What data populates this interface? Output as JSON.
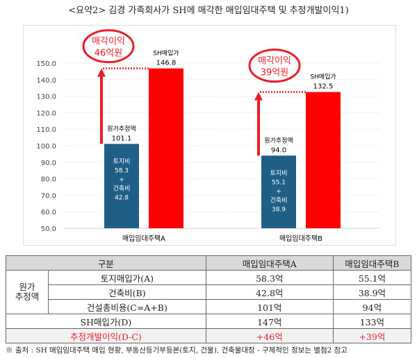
{
  "title": "<요약2> 김경 가족회사가 SH에 매각한 매입임대주택 및 추정개발이익1)",
  "chart_data": {
    "type": "bar",
    "categories": [
      "매입임대주택A",
      "매입임대주택B"
    ],
    "ylim": [
      50,
      150
    ],
    "yticks": [
      "50.0",
      "60.0",
      "70.0",
      "80.0",
      "90.0",
      "100.0",
      "110.0",
      "120.0",
      "130.0",
      "140.0",
      "150.0"
    ],
    "grid": true,
    "series": [
      {
        "name": "원가추정액",
        "values": [
          101.1,
          94.0
        ],
        "labels": [
          "101.1",
          "94.0"
        ],
        "color": "#1f5f86",
        "inner": [
          [
            "토지비",
            "58.3",
            "+",
            "건축비",
            "42.8"
          ],
          [
            "토지비",
            "55.1",
            "+",
            "건축비",
            "38.9"
          ]
        ]
      },
      {
        "name": "SH매입가",
        "values": [
          146.8,
          132.5
        ],
        "labels": [
          "146.8",
          "132.5"
        ],
        "color": "#ff0000"
      }
    ],
    "annotations": [
      [
        "매각이익",
        "46억원"
      ],
      [
        "매각이익",
        "39억원"
      ]
    ]
  },
  "table": {
    "header": [
      "구분",
      "매입임대주택A",
      "매입임대주택B"
    ],
    "group": "원가\n추정액",
    "group_lines": [
      "원가",
      "추정액"
    ],
    "rows": [
      [
        "토지매입가(A)",
        "58.3억",
        "55.1억"
      ],
      [
        "건축비(B)",
        "42.8억",
        "38.9억"
      ],
      [
        "건설총비용(C=A+B)",
        "101억",
        "94억"
      ],
      [
        "SH매입가(D)",
        "147억",
        "133억"
      ],
      [
        "추정개발이익(D-C)",
        "+46억",
        "+39억"
      ]
    ]
  },
  "note": "※ 출처 : SH 매입임대주택 매입 현황, 부동산등기부등본(토지, 건물), 건축물대장 - 구체적인 정보는 별첨2 참고"
}
